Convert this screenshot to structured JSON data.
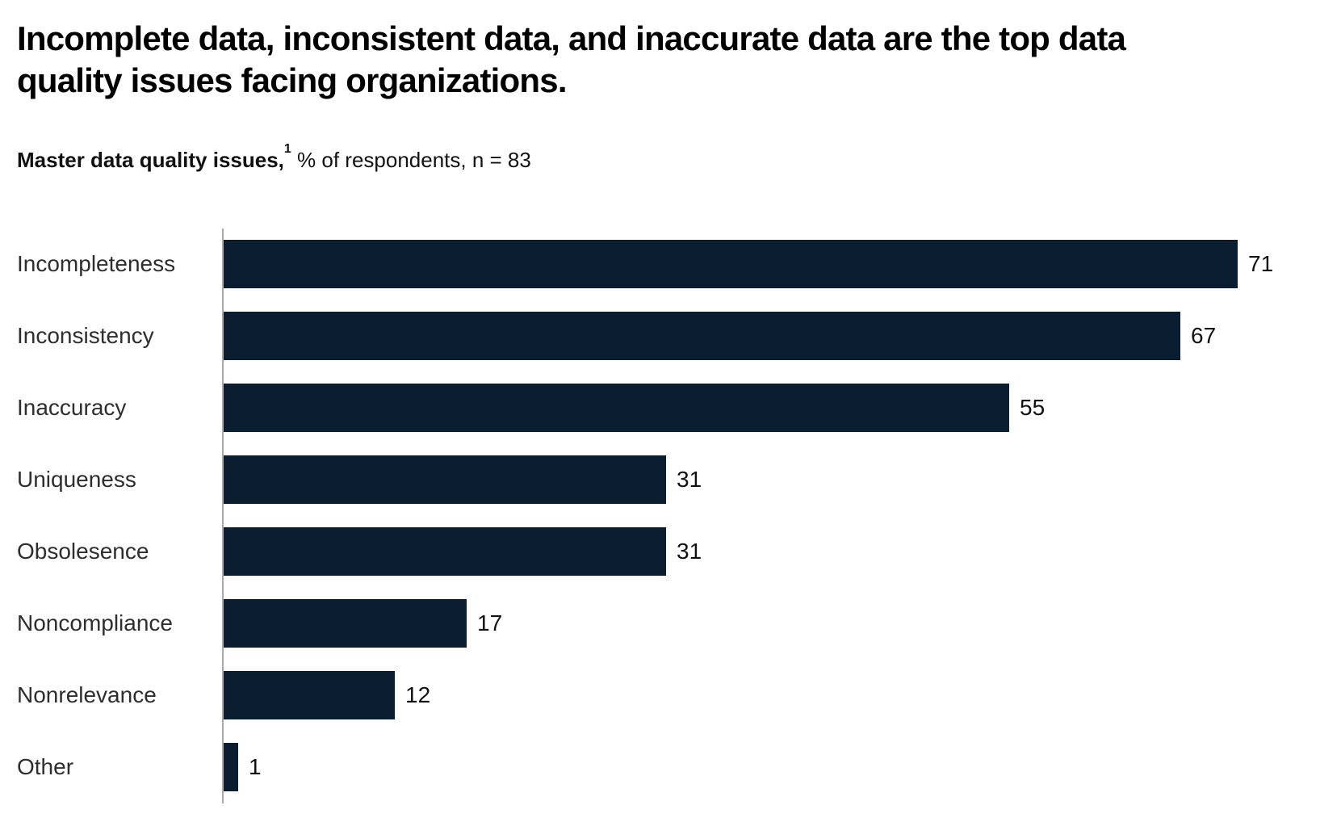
{
  "page": {
    "title": "Incomplete data, inconsistent data, and inaccurate data are the top data\nquality issues facing organizations.",
    "subtitle": {
      "bold": "Master data quality issues,",
      "footnote_marker": "1",
      "rest": " % of respondents, n = 83"
    }
  },
  "colors": {
    "bar": "#0A1E2F",
    "axis_line": "#A9A9B0",
    "title_text": "#000000",
    "category_label_text": "#2E2E2E",
    "value_label_text": "#111111",
    "background": "#FFFFFF"
  },
  "chart_data": {
    "type": "bar",
    "orientation": "horizontal",
    "title": "Master data quality issues, % of respondents, n = 83",
    "categories": [
      "Incompleteness",
      "Inconsistency",
      "Inaccuracy",
      "Uniqueness",
      "Obsolesence",
      "Noncompliance",
      "Nonrelevance",
      "Other"
    ],
    "values": [
      71,
      67,
      55,
      31,
      31,
      17,
      12,
      1
    ],
    "xlim": [
      0,
      71
    ],
    "value_labels_shown": true,
    "grid": false,
    "legend": false,
    "axis": "single-vertical-baseline-left"
  }
}
